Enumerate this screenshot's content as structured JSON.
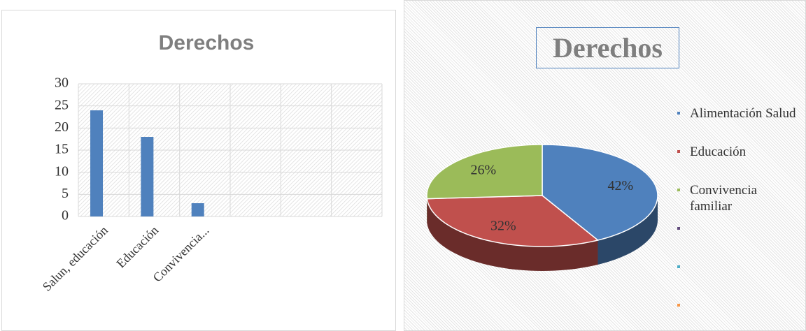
{
  "chart_data": [
    {
      "type": "bar",
      "title": "Derechos",
      "categories": [
        "Salun, educación",
        "Educación",
        "Convivencia...",
        null,
        null,
        null
      ],
      "values": [
        24,
        18,
        3,
        null,
        null,
        null
      ],
      "color": "#4f81bd",
      "ylim": [
        0,
        30
      ],
      "yticks": [
        0,
        5,
        10,
        15,
        20,
        25,
        30
      ],
      "grid": true
    },
    {
      "type": "pie",
      "title": "Derechos",
      "categories": [
        "Alimentación Salud",
        "Educación",
        "Convivencia familiar",
        null,
        null,
        null
      ],
      "values": [
        42,
        32,
        26,
        null,
        null,
        null
      ],
      "value_labels": [
        "42%",
        "32%",
        "26%",
        null,
        null,
        null
      ],
      "colors": [
        "#4f81bd",
        "#c0504d",
        "#9bbb59",
        "#604a7b",
        "#4bacc6",
        "#f79646"
      ],
      "legend": "right"
    }
  ]
}
